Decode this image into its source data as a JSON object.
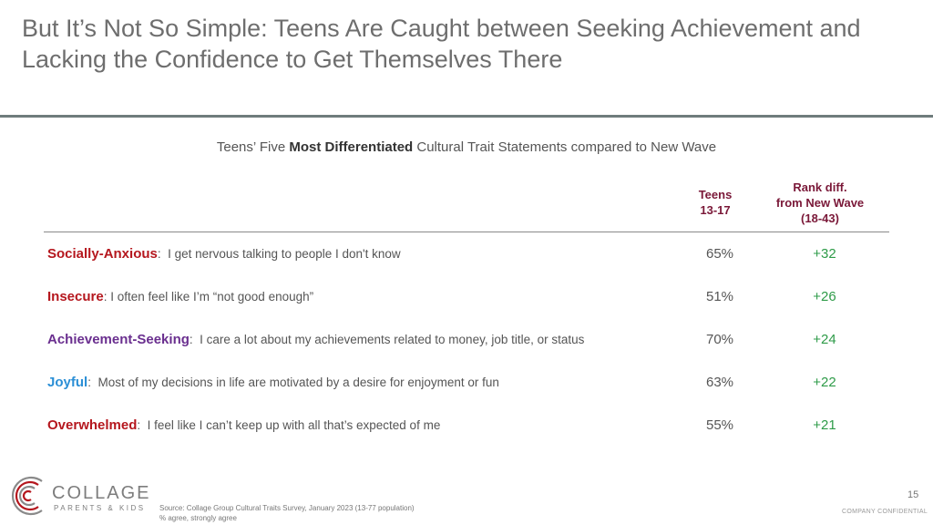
{
  "title": "But It’s Not So Simple: Teens Are Caught between Seeking Achievement and Lacking the Confidence to Get Themselves There",
  "subtitle": {
    "prefix": "Teens’ Five ",
    "bold": "Most Differentiated",
    "suffix": " Cultural Trait Statements compared to New Wave"
  },
  "columns": {
    "teens": [
      "Teens",
      "13-17"
    ],
    "rank": [
      "Rank diff.",
      "from New Wave",
      "(18-43)"
    ]
  },
  "rows": [
    {
      "trait": "Socially-Anxious",
      "sep": ":",
      "statement": "  I get nervous talking to people I don't know",
      "pct": "65%",
      "diff": "+32",
      "color": "#b5171e"
    },
    {
      "trait": "Insecure",
      "sep": ":",
      "statement": " I often feel like I’m “not good enough”",
      "pct": "51%",
      "diff": "+26",
      "color": "#b5171e"
    },
    {
      "trait": "Achievement-Seeking",
      "sep": ":",
      "statement": "  I care a lot about my achievements related to money, job title, or status",
      "pct": "70%",
      "diff": "+24",
      "color": "#6a2f8f"
    },
    {
      "trait": "Joyful",
      "sep": ":",
      "statement": "  Most of my decisions in life are motivated by a desire for enjoyment or fun",
      "pct": "63%",
      "diff": "+22",
      "color": "#2b8fd6"
    },
    {
      "trait": "Overwhelmed",
      "sep": ":",
      "statement": "  I feel like I can’t keep up with all that’s expected of me",
      "pct": "55%",
      "diff": "+21",
      "color": "#b5171e"
    }
  ],
  "logo": {
    "word": "COLLAGE",
    "sub": "PARENTS & KIDS"
  },
  "source": [
    "Source: Collage Group Cultural Traits Survey, January 2023 (13-77 population)",
    "% agree, strongly agree"
  ],
  "page_number": "15",
  "confidential": "COMPANY CONFIDENTIAL"
}
